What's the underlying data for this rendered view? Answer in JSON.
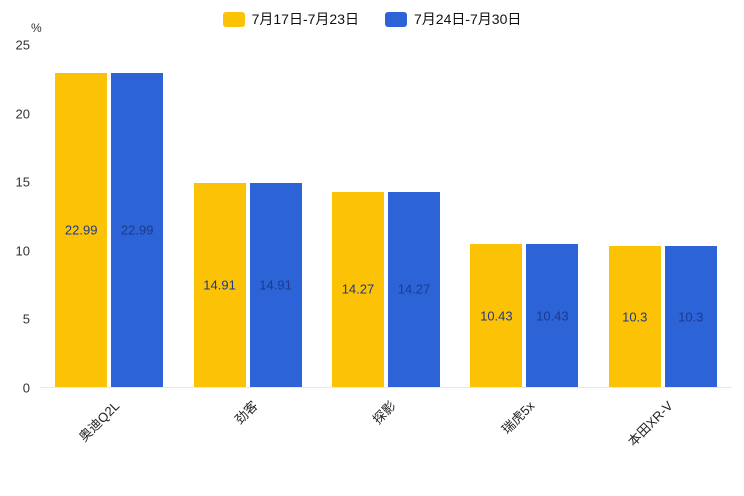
{
  "colors": {
    "series1_yellow": "#FCC306",
    "series2_blue": "#2C63D6",
    "value_label": "#1D3A8C"
  },
  "chart_data": {
    "type": "bar",
    "categories": [
      "奥迪Q2L",
      "劲客",
      "探影",
      "瑞虎5x",
      "本田XR-V"
    ],
    "series": [
      {
        "name": "7月17日-7月23日",
        "color": "#FCC306",
        "values": [
          22.99,
          14.91,
          14.27,
          10.43,
          10.3
        ]
      },
      {
        "name": "7月24日-7月30日",
        "color": "#2C63D6",
        "values": [
          22.99,
          14.91,
          14.27,
          10.43,
          10.3
        ]
      }
    ],
    "title": "",
    "xlabel": "",
    "ylabel": "%",
    "ylim": [
      0,
      25
    ],
    "yticks": [
      0,
      5,
      10,
      15,
      20,
      25
    ],
    "legend_position": "top",
    "grid": false,
    "value_labels": true
  }
}
